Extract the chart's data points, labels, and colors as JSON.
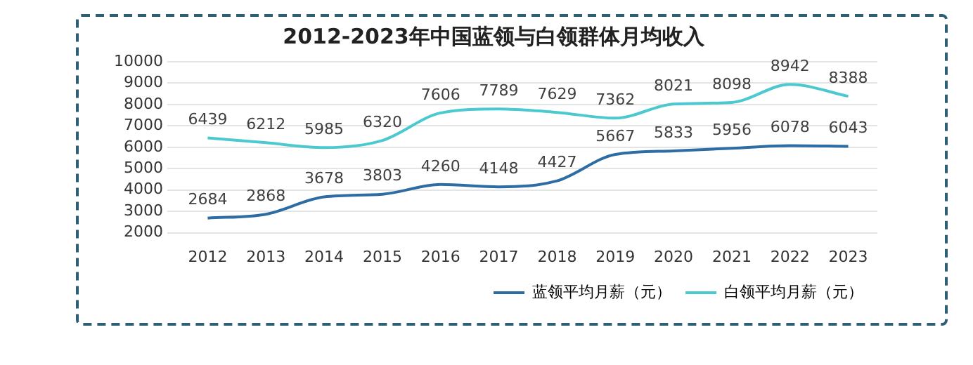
{
  "chart_data": {
    "type": "line",
    "title": "2012-2023年中国蓝领与白领群体月均收入",
    "categories": [
      "2012",
      "2013",
      "2014",
      "2015",
      "2016",
      "2017",
      "2018",
      "2019",
      "2020",
      "2021",
      "2022",
      "2023"
    ],
    "series": [
      {
        "name": "蓝领平均月薪（元）",
        "color": "#2e6da4",
        "values": [
          2684,
          2868,
          3678,
          3803,
          4260,
          4148,
          4427,
          5667,
          5833,
          5956,
          6078,
          6043
        ]
      },
      {
        "name": "白领平均月薪（元）",
        "color": "#4cc9d0",
        "values": [
          6439,
          6212,
          5985,
          6320,
          7606,
          7789,
          7629,
          7362,
          8021,
          8098,
          8942,
          8388
        ]
      }
    ],
    "ylim": [
      2000,
      10000
    ],
    "yticks": [
      2000,
      3000,
      4000,
      5000,
      6000,
      7000,
      8000,
      9000,
      10000
    ],
    "grid": "y",
    "legend": "bottom",
    "data_labels": true,
    "marker": "none",
    "line_style": "solid"
  }
}
